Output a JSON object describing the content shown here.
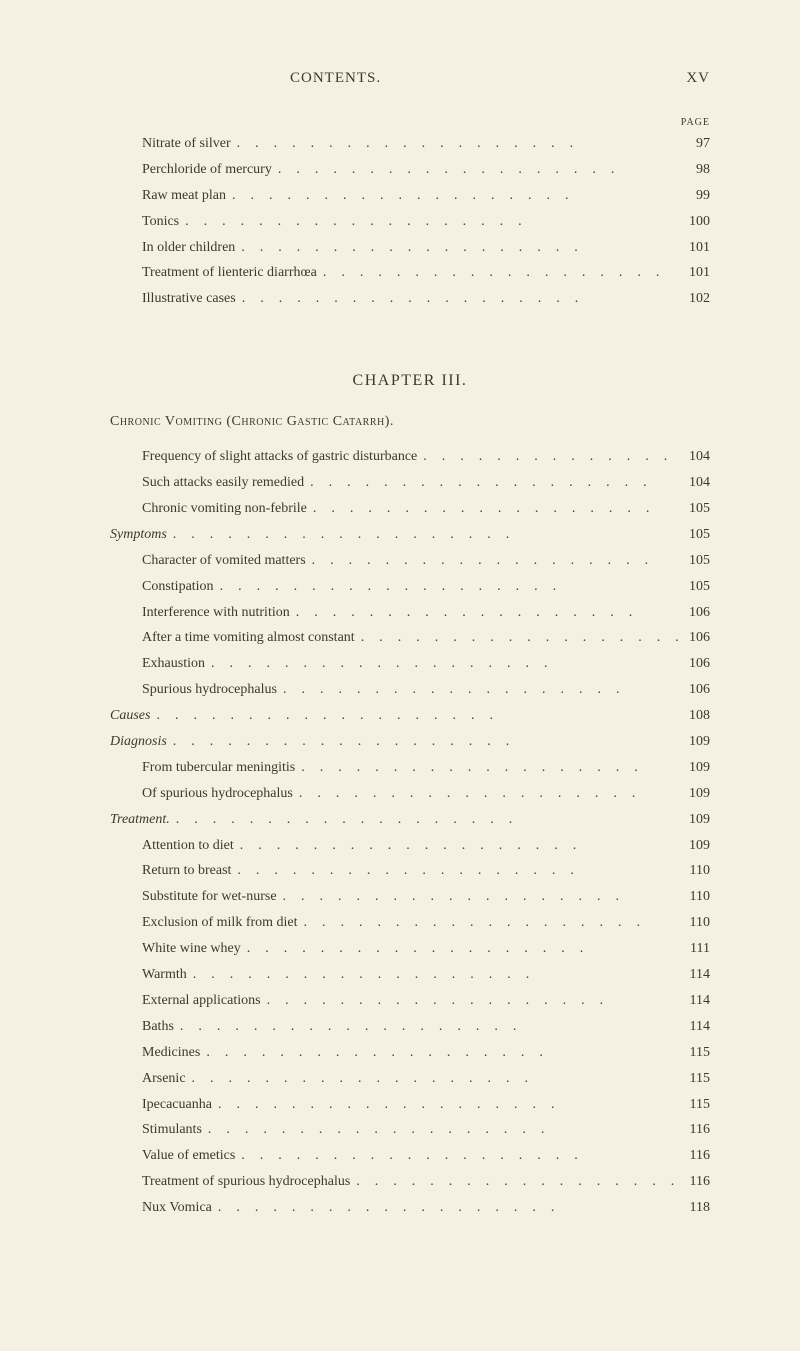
{
  "header": {
    "running_title": "CONTENTS.",
    "page_roman": "XV",
    "page_label": "PAGE"
  },
  "top_entries": [
    {
      "label": "Nitrate of silver",
      "page": "97",
      "indent": 1
    },
    {
      "label": "Perchloride of mercury",
      "page": "98",
      "indent": 1
    },
    {
      "label": "Raw meat plan",
      "page": "99",
      "indent": 1
    },
    {
      "label": "Tonics",
      "page": "100",
      "indent": 1
    },
    {
      "label": "In older children",
      "page": "101",
      "indent": 1
    },
    {
      "label": "Treatment of lienteric diarrhœa",
      "page": "101",
      "indent": 1
    },
    {
      "label": "Illustrative cases",
      "page": "102",
      "indent": 1
    }
  ],
  "chapter": {
    "title": "CHAPTER III.",
    "section_title": "Chronic Vomiting (Chronic Gastic Catarrh)."
  },
  "entries": [
    {
      "label": "Frequency of slight attacks of gastric disturbance",
      "page": "104",
      "indent": 1
    },
    {
      "label": "Such attacks easily remedied",
      "page": "104",
      "indent": 1
    },
    {
      "label": "Chronic vomiting non-febrile",
      "page": "105",
      "indent": 1
    },
    {
      "label": "Symptoms",
      "page": "105",
      "indent": 0,
      "italic": true
    },
    {
      "label": "Character of vomited matters",
      "page": "105",
      "indent": 1
    },
    {
      "label": "Constipation",
      "page": "105",
      "indent": 1
    },
    {
      "label": "Interference with nutrition",
      "page": "106",
      "indent": 1
    },
    {
      "label": "After a time vomiting almost constant",
      "page": "106",
      "indent": 1
    },
    {
      "label": "Exhaustion",
      "page": "106",
      "indent": 1
    },
    {
      "label": "Spurious hydrocephalus",
      "page": "106",
      "indent": 1
    },
    {
      "label": "Causes",
      "page": "108",
      "indent": 0,
      "italic": true
    },
    {
      "label": "Diagnosis",
      "page": "109",
      "indent": 0,
      "italic": true
    },
    {
      "label": "From tubercular meningitis",
      "page": "109",
      "indent": 1
    },
    {
      "label": "Of spurious hydrocephalus",
      "page": "109",
      "indent": 1
    },
    {
      "label": "Treatment.",
      "page": "109",
      "indent": 0,
      "italic": true
    },
    {
      "label": "Attention to diet",
      "page": "109",
      "indent": 1
    },
    {
      "label": "Return to breast",
      "page": "110",
      "indent": 1
    },
    {
      "label": "Substitute for wet-nurse",
      "page": "110",
      "indent": 1
    },
    {
      "label": "Exclusion of milk from diet",
      "page": "110",
      "indent": 1
    },
    {
      "label": "White wine whey",
      "page": "111",
      "indent": 1
    },
    {
      "label": "Warmth",
      "page": "114",
      "indent": 1
    },
    {
      "label": "External applications",
      "page": "114",
      "indent": 1
    },
    {
      "label": "Baths",
      "page": "114",
      "indent": 1
    },
    {
      "label": "Medicines",
      "page": "115",
      "indent": 1
    },
    {
      "label": "Arsenic",
      "page": "115",
      "indent": 1
    },
    {
      "label": "Ipecacuanha",
      "page": "115",
      "indent": 1
    },
    {
      "label": "Stimulants",
      "page": "116",
      "indent": 1
    },
    {
      "label": "Value of emetics",
      "page": "116",
      "indent": 1
    },
    {
      "label": "Treatment of spurious hydrocephalus",
      "page": "116",
      "indent": 1
    },
    {
      "label": "Nux Vomica",
      "page": "118",
      "indent": 1
    }
  ],
  "dot_leader": "..................."
}
